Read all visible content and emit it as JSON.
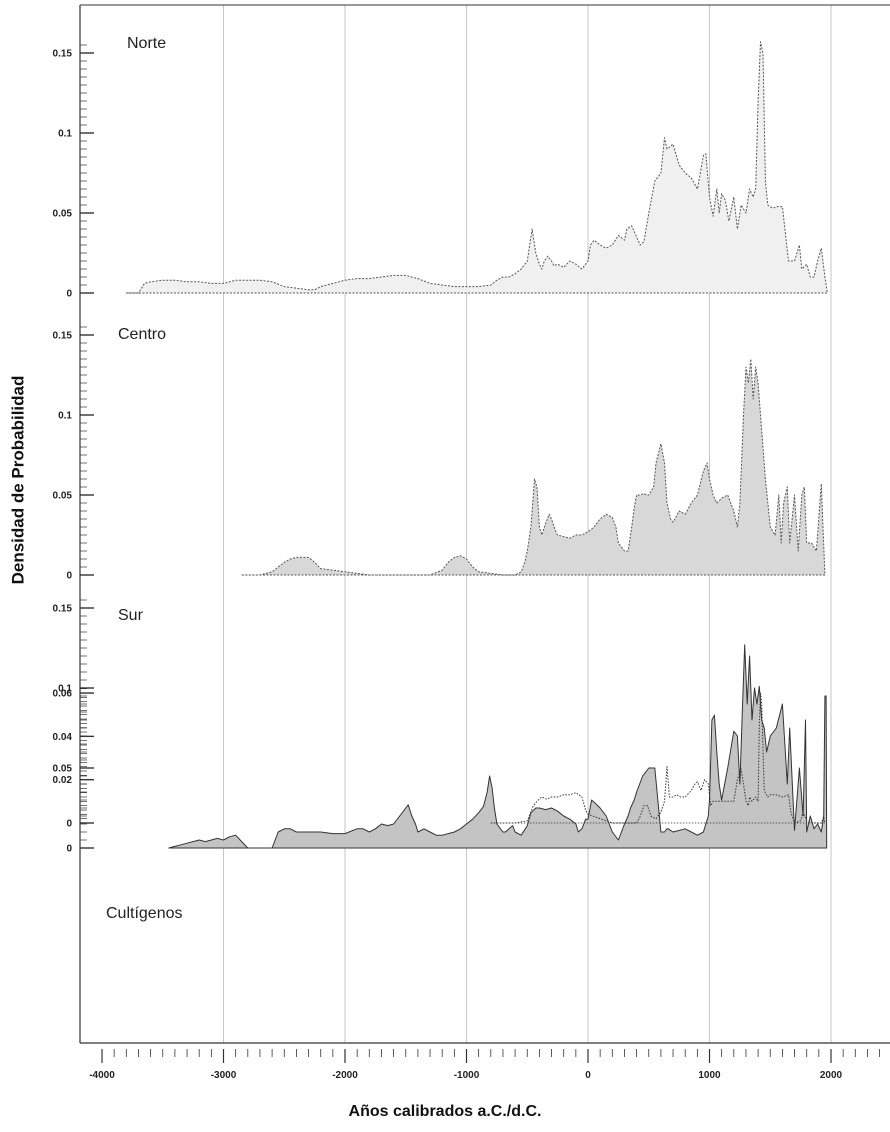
{
  "figure": {
    "ylabel": "Densidad de Probabilidad",
    "xlabel": "Años calibrados a.C./d.C."
  },
  "chart_data": {
    "type": "area",
    "x_ticks": [
      -4000,
      -3000,
      -2000,
      -1000,
      0,
      1000,
      2000
    ],
    "xlim": [
      -4100,
      2430
    ],
    "grid": "vertical at every 1000 years",
    "panels": [
      {
        "title": "Norte",
        "ylim": [
          0,
          0.16
        ],
        "y_ticks": [
          0,
          0.05,
          0.1,
          0.15
        ],
        "fill": "#f0f0f0",
        "stroke": "#555555",
        "dash": "2 1.5",
        "x": [
          -3800,
          -3700,
          -3650,
          -3600,
          -3500,
          -3400,
          -3300,
          -3200,
          -3100,
          -3000,
          -2900,
          -2800,
          -2700,
          -2600,
          -2500,
          -2400,
          -2300,
          -2250,
          -2200,
          -2100,
          -2000,
          -1900,
          -1800,
          -1700,
          -1600,
          -1500,
          -1400,
          -1300,
          -1200,
          -1100,
          -1000,
          -900,
          -800,
          -750,
          -700,
          -650,
          -600,
          -550,
          -500,
          -460,
          -430,
          -400,
          -380,
          -360,
          -330,
          -300,
          -280,
          -250,
          -200,
          -150,
          -100,
          -50,
          0,
          20,
          50,
          100,
          150,
          200,
          250,
          300,
          320,
          360,
          400,
          430,
          460,
          500,
          550,
          600,
          630,
          650,
          700,
          750,
          800,
          850,
          900,
          950,
          970,
          1000,
          1030,
          1060,
          1080,
          1100,
          1130,
          1160,
          1200,
          1230,
          1260,
          1300,
          1330,
          1360,
          1380,
          1400,
          1420,
          1440,
          1460,
          1480,
          1520,
          1560,
          1600,
          1650,
          1700,
          1740,
          1760,
          1800,
          1830,
          1860,
          1890,
          1920,
          1950,
          1970
        ],
        "y": [
          0,
          0,
          0.006,
          0.007,
          0.008,
          0.008,
          0.007,
          0.007,
          0.006,
          0.006,
          0.008,
          0.008,
          0.008,
          0.007,
          0.004,
          0.003,
          0.002,
          0.002,
          0.004,
          0.006,
          0.008,
          0.009,
          0.009,
          0.01,
          0.011,
          0.011,
          0.009,
          0.006,
          0.005,
          0.004,
          0.004,
          0.004,
          0.005,
          0.008,
          0.01,
          0.01,
          0.012,
          0.015,
          0.02,
          0.04,
          0.025,
          0.018,
          0.015,
          0.02,
          0.023,
          0.02,
          0.017,
          0.018,
          0.016,
          0.02,
          0.018,
          0.015,
          0.02,
          0.03,
          0.033,
          0.03,
          0.028,
          0.03,
          0.036,
          0.033,
          0.04,
          0.042,
          0.035,
          0.03,
          0.032,
          0.05,
          0.07,
          0.075,
          0.097,
          0.09,
          0.093,
          0.08,
          0.075,
          0.072,
          0.065,
          0.086,
          0.087,
          0.06,
          0.048,
          0.065,
          0.05,
          0.062,
          0.058,
          0.045,
          0.06,
          0.04,
          0.055,
          0.05,
          0.065,
          0.06,
          0.065,
          0.12,
          0.157,
          0.15,
          0.07,
          0.055,
          0.053,
          0.054,
          0.054,
          0.02,
          0.02,
          0.03,
          0.015,
          0.018,
          0.01,
          0.01,
          0.02,
          0.028,
          0.01,
          0
        ]
      },
      {
        "title": "Centro",
        "ylim": [
          0,
          0.16
        ],
        "y_ticks": [
          0,
          0.05,
          0.1,
          0.15
        ],
        "fill": "#d8d8d8",
        "stroke": "#555555",
        "dash": "2 1.5",
        "x": [
          -2850,
          -2700,
          -2600,
          -2550,
          -2500,
          -2450,
          -2400,
          -2300,
          -2250,
          -2200,
          -2100,
          -2000,
          -1900,
          -1800,
          -1700,
          -1600,
          -1500,
          -1400,
          -1300,
          -1200,
          -1150,
          -1100,
          -1050,
          -1000,
          -950,
          -900,
          -800,
          -700,
          -600,
          -550,
          -520,
          -500,
          -470,
          -440,
          -420,
          -400,
          -380,
          -350,
          -320,
          -300,
          -270,
          -250,
          -200,
          -150,
          -100,
          -50,
          0,
          50,
          100,
          150,
          200,
          230,
          250,
          300,
          330,
          360,
          380,
          400,
          430,
          460,
          480,
          500,
          540,
          560,
          600,
          630,
          650,
          680,
          700,
          750,
          800,
          850,
          900,
          950,
          980,
          1000,
          1030,
          1060,
          1100,
          1150,
          1200,
          1230,
          1250,
          1280,
          1300,
          1320,
          1340,
          1360,
          1380,
          1400,
          1420,
          1440,
          1460,
          1500,
          1540,
          1570,
          1590,
          1610,
          1640,
          1660,
          1700,
          1730,
          1760,
          1780,
          1800,
          1840,
          1880,
          1920,
          1950
        ],
        "y": [
          0,
          0,
          0.002,
          0.005,
          0.008,
          0.01,
          0.011,
          0.011,
          0.008,
          0.004,
          0.003,
          0.002,
          0.001,
          0,
          0,
          0,
          0,
          0,
          0,
          0.003,
          0.008,
          0.011,
          0.012,
          0.01,
          0.005,
          0.002,
          0.001,
          0,
          0,
          0.002,
          0.008,
          0.015,
          0.03,
          0.06,
          0.055,
          0.03,
          0.025,
          0.032,
          0.038,
          0.035,
          0.028,
          0.025,
          0.024,
          0.023,
          0.025,
          0.025,
          0.027,
          0.03,
          0.035,
          0.038,
          0.036,
          0.03,
          0.02,
          0.015,
          0.015,
          0.03,
          0.042,
          0.05,
          0.05,
          0.051,
          0.05,
          0.05,
          0.055,
          0.07,
          0.082,
          0.07,
          0.045,
          0.035,
          0.033,
          0.04,
          0.038,
          0.045,
          0.05,
          0.065,
          0.07,
          0.06,
          0.05,
          0.045,
          0.048,
          0.05,
          0.04,
          0.03,
          0.045,
          0.1,
          0.13,
          0.12,
          0.135,
          0.11,
          0.13,
          0.12,
          0.1,
          0.08,
          0.06,
          0.03,
          0.025,
          0.05,
          0.02,
          0.045,
          0.055,
          0.02,
          0.05,
          0.015,
          0.05,
          0.055,
          0.02,
          0.02,
          0.015,
          0.057,
          0
        ]
      },
      {
        "title": "Sur",
        "ylim": [
          0,
          0.16
        ],
        "y_ticks": [
          0,
          0.05,
          0.1,
          0.15
        ],
        "fill": "#c4c4c4",
        "stroke": "#333333",
        "dash": "",
        "x": [
          -3450,
          -3400,
          -3350,
          -3300,
          -3250,
          -3200,
          -3150,
          -3100,
          -3050,
          -3000,
          -2950,
          -2900,
          -2850,
          -2800,
          -2700,
          -2600,
          -2550,
          -2500,
          -2450,
          -2400,
          -2300,
          -2200,
          -2100,
          -2000,
          -1900,
          -1850,
          -1800,
          -1750,
          -1700,
          -1650,
          -1600,
          -1550,
          -1500,
          -1480,
          -1450,
          -1420,
          -1400,
          -1350,
          -1300,
          -1250,
          -1200,
          -1150,
          -1100,
          -1050,
          -1000,
          -950,
          -900,
          -860,
          -830,
          -810,
          -790,
          -770,
          -750,
          -700,
          -680,
          -650,
          -620,
          -600,
          -550,
          -500,
          -470,
          -430,
          -400,
          -350,
          -300,
          -250,
          -200,
          -150,
          -100,
          -80,
          -50,
          -20,
          0,
          30,
          60,
          100,
          150,
          200,
          250,
          300,
          330,
          350,
          380,
          400,
          450,
          500,
          550,
          600,
          630,
          650,
          660,
          700,
          800,
          850,
          900,
          950,
          990,
          1000,
          1020,
          1040,
          1060,
          1080,
          1100,
          1150,
          1200,
          1230,
          1250,
          1270,
          1290,
          1310,
          1330,
          1350,
          1370,
          1390,
          1410,
          1430,
          1450,
          1470,
          1500,
          1550,
          1600,
          1640,
          1660,
          1700,
          1740,
          1770,
          1790,
          1800,
          1830,
          1860,
          1890,
          1920,
          1940,
          1950,
          1960,
          1965
        ],
        "y": [
          0,
          0.001,
          0.002,
          0.003,
          0.004,
          0.005,
          0.004,
          0.005,
          0.006,
          0.005,
          0.007,
          0.008,
          0.004,
          0,
          0,
          0,
          0.01,
          0.012,
          0.012,
          0.01,
          0.01,
          0.01,
          0.009,
          0.009,
          0.012,
          0.012,
          0.01,
          0.012,
          0.015,
          0.014,
          0.015,
          0.02,
          0.025,
          0.027,
          0.02,
          0.015,
          0.01,
          0.012,
          0.01,
          0.008,
          0.008,
          0.009,
          0.01,
          0.012,
          0.015,
          0.018,
          0.022,
          0.026,
          0.035,
          0.045,
          0.038,
          0.025,
          0.015,
          0.01,
          0.01,
          0.012,
          0.014,
          0.01,
          0.008,
          0.014,
          0.022,
          0.025,
          0.025,
          0.024,
          0.025,
          0.023,
          0.02,
          0.018,
          0.015,
          0.01,
          0.012,
          0.018,
          0.018,
          0.03,
          0.028,
          0.025,
          0.02,
          0.01,
          0.005,
          0.015,
          0.02,
          0.025,
          0.03,
          0.035,
          0.045,
          0.05,
          0.05,
          0.01,
          0.01,
          0.012,
          0.012,
          0.01,
          0.012,
          0.01,
          0.008,
          0.01,
          0.02,
          0.03,
          0.08,
          0.083,
          0.06,
          0.04,
          0.03,
          0.05,
          0.073,
          0.07,
          0.04,
          0.085,
          0.127,
          0.09,
          0.12,
          0.08,
          0.1,
          0.09,
          0.101,
          0.08,
          0.075,
          0.06,
          0.07,
          0.075,
          0.09,
          0.04,
          0.075,
          0.011,
          0.05,
          0.02,
          0.08,
          0.01,
          0.02,
          0.012,
          0.015,
          0.01,
          0.02,
          0.095,
          0.095,
          0
        ]
      },
      {
        "title": "Cultígenos",
        "ylim": [
          -0.006,
          0.064
        ],
        "y_ticks": [
          0,
          0.02,
          0.04,
          0.06
        ],
        "fill": "none",
        "stroke": "#333333",
        "dash": "1.5 1.5",
        "x": [
          -800,
          -700,
          -600,
          -500,
          -450,
          -420,
          -380,
          -340,
          -300,
          -250,
          -200,
          -150,
          -100,
          -50,
          -20,
          0,
          50,
          100,
          150,
          200,
          250,
          300,
          350,
          400,
          430,
          460,
          490,
          520,
          560,
          600,
          630,
          650,
          670,
          700,
          730,
          760,
          800,
          850,
          880,
          900,
          930,
          960,
          990,
          1010,
          1030,
          1060,
          1100,
          1150,
          1200,
          1230,
          1260,
          1280,
          1300,
          1320,
          1330,
          1350,
          1380,
          1400,
          1410,
          1420,
          1430,
          1450,
          1480,
          1500,
          1550,
          1600,
          1650,
          1670,
          1700,
          1750,
          1770,
          1800,
          1850,
          1900,
          1920,
          1940,
          1950
        ],
        "y": [
          0,
          0,
          0,
          0.001,
          0.008,
          0.01,
          0.012,
          0.011,
          0.012,
          0.012,
          0.013,
          0.013,
          0.014,
          0.012,
          0.006,
          0.004,
          0.003,
          0.002,
          0.001,
          0,
          0,
          0,
          0,
          0,
          0.003,
          0.008,
          0.008,
          0.003,
          0.002,
          0.005,
          0.01,
          0.026,
          0.012,
          0.012,
          0.013,
          0.012,
          0.012,
          0.015,
          0.018,
          0.019,
          0.015,
          0.02,
          0.018,
          0.008,
          0.01,
          0.01,
          0.01,
          0.01,
          0.01,
          0.02,
          0.025,
          0.018,
          0.01,
          0.008,
          0.012,
          0.01,
          0.012,
          0.01,
          0.045,
          0.06,
          0.055,
          0.015,
          0.012,
          0.013,
          0.013,
          0.012,
          0.013,
          0.005,
          0,
          0.001,
          0.005,
          0.001,
          0,
          0,
          0,
          0.003,
          0
        ]
      }
    ]
  }
}
